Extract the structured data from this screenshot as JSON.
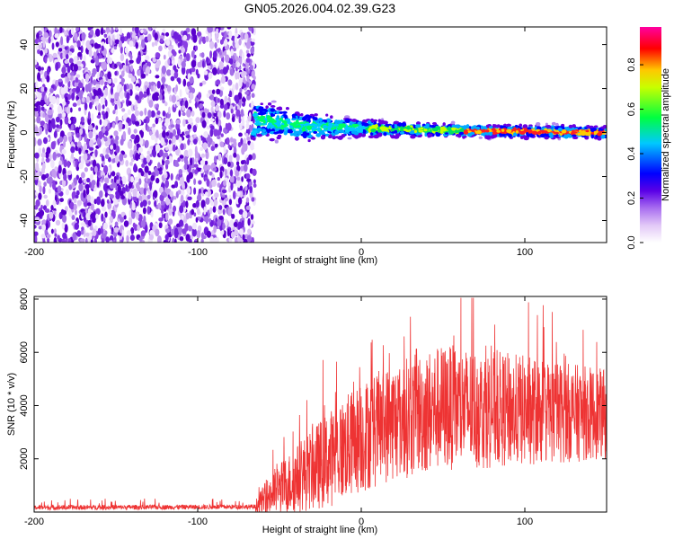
{
  "title": "GN05.2026.004.02.39.G23",
  "chart_data": [
    {
      "type": "heatmap",
      "name": "spectrogram",
      "xlabel": "Height of straight line (km)",
      "ylabel": "Frequency (Hz)",
      "xlim": [
        -200,
        150
      ],
      "ylim": [
        -50,
        48
      ],
      "x_ticks": [
        -200,
        -100,
        0,
        100
      ],
      "y_ticks": [
        40,
        20,
        0,
        -20,
        -40
      ],
      "noise_region_x": [
        -200,
        -65
      ],
      "signal_band": [
        {
          "x": -65,
          "center": 6,
          "halfwidth": 9
        },
        {
          "x": -40,
          "center": 3,
          "halfwidth": 7
        },
        {
          "x": 0,
          "center": 2,
          "halfwidth": 4
        },
        {
          "x": 50,
          "center": 1,
          "halfwidth": 3
        },
        {
          "x": 150,
          "center": 0,
          "halfwidth": 3
        }
      ],
      "colorbar": {
        "label": "Normalized spectral amplitude",
        "range": [
          0.0,
          0.97
        ],
        "ticks": [
          "0.0",
          "0.2",
          "0.4",
          "0.6",
          "0.8"
        ],
        "colors": [
          "#ffffff",
          "#d9b6f5",
          "#8a2be2",
          "#0000ff",
          "#00ffff",
          "#00ff00",
          "#ffff00",
          "#ff0000",
          "#ff00a0"
        ]
      }
    },
    {
      "type": "line",
      "name": "snr",
      "xlabel": "Height of straight line (km)",
      "ylabel": "SNR (10 * v/v)",
      "xlim": [
        -200,
        150
      ],
      "ylim": [
        0,
        8100
      ],
      "x_ticks": [
        -200,
        -100,
        0,
        100
      ],
      "y_ticks": [
        8000,
        6000,
        4000,
        2000
      ],
      "color": "#ee3333",
      "envelope": [
        {
          "x": -200,
          "mean": 150,
          "spread": 300
        },
        {
          "x": -65,
          "mean": 180,
          "spread": 300
        },
        {
          "x": -55,
          "mean": 600,
          "spread": 1200
        },
        {
          "x": -40,
          "mean": 1100,
          "spread": 1800
        },
        {
          "x": -20,
          "mean": 1800,
          "spread": 2600
        },
        {
          "x": 0,
          "mean": 2600,
          "spread": 3000
        },
        {
          "x": 20,
          "mean": 3200,
          "spread": 3200
        },
        {
          "x": 50,
          "mean": 3700,
          "spread": 3400
        },
        {
          "x": 100,
          "mean": 3600,
          "spread": 3000
        },
        {
          "x": 150,
          "mean": 3500,
          "spread": 2400
        }
      ]
    }
  ]
}
